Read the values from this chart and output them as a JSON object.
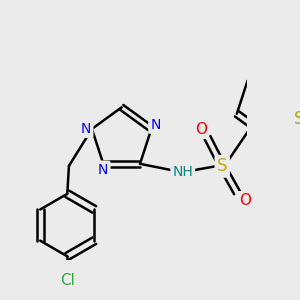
{
  "bg_color": "#ebebeb",
  "bond_color": "#000000",
  "bond_width": 1.8,
  "atom_colors": {
    "N": "#0000ff",
    "S_sulfo": "#ccaa00",
    "S_thiophene": "#aaaa00",
    "O": "#ff0000",
    "Cl": "#33aa33",
    "NH": "#008888"
  },
  "font_size": 10,
  "fig_size": [
    3.0,
    3.0
  ],
  "dpi": 100
}
